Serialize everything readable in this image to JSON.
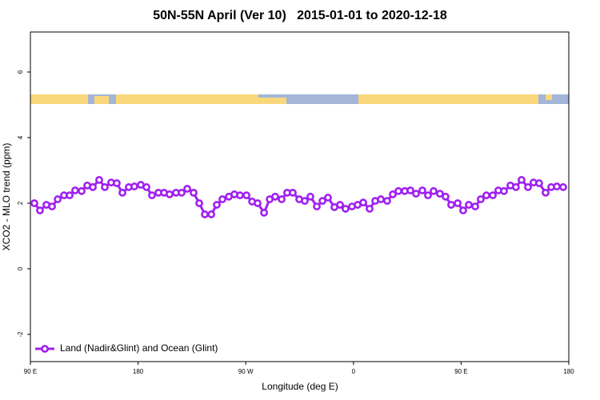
{
  "chart_data": {
    "type": "line",
    "title": "50N-55N April (Ver 10)   2015-01-01 to 2020-12-18",
    "x_label": "Longitude (deg E)",
    "y_label": "XCO2 - MLO trend (ppm)",
    "xlim": [
      90,
      540
    ],
    "ylim": [
      -2.83,
      7.22
    ],
    "xticks": [
      {
        "value": 90,
        "label": "90 E"
      },
      180,
      {
        "value": 270,
        "label": "90 W"
      },
      {
        "value": 360,
        "label": "0"
      },
      {
        "value": 450,
        "label": "90 E"
      },
      {
        "value": 540,
        "label": "180"
      }
    ],
    "yticks": [
      -2,
      0,
      2,
      4,
      6
    ],
    "legend": "bottom-left",
    "x": [
      93.3,
      98.0,
      103.4,
      108.1,
      112.8,
      118.1,
      122.8,
      127.4,
      132.8,
      137.5,
      142.2,
      147.5,
      152.2,
      157.5,
      162.2,
      166.9,
      172.2,
      176.9,
      182.3,
      187.0,
      191.6,
      197.0,
      201.7,
      206.3,
      211.7,
      216.4,
      221.1,
      226.4,
      231.1,
      235.8,
      241.2,
      245.8,
      250.5,
      255.9,
      260.5,
      265.2,
      270.6,
      275.3,
      279.9,
      285.3,
      290.0,
      294.6,
      300.0,
      304.6,
      309.3,
      314.7,
      319.3,
      324.0,
      329.4,
      334.1,
      338.7,
      344.1,
      348.8,
      353.4,
      358.8,
      363.5,
      368.2,
      373.5,
      378.2,
      382.9,
      388.2,
      392.9,
      397.6,
      402.9,
      407.6,
      412.3,
      417.6,
      422.3,
      427.0,
      432.3,
      437.0,
      441.7,
      447.1,
      451.7,
      456.4,
      461.8,
      466.4,
      471.1,
      476.5,
      481.1,
      485.8,
      491.2,
      495.8,
      500.5,
      505.9,
      510.5,
      515.2,
      520.6,
      525.3,
      530.0,
      535.3
    ],
    "series": [
      {
        "name": "Land (Nadir&Glint) and Ocean (Glint)",
        "color": "#a020f0",
        "values": [
          2.0,
          1.78,
          1.95,
          1.9,
          2.12,
          2.24,
          2.24,
          2.39,
          2.37,
          2.54,
          2.49,
          2.71,
          2.49,
          2.63,
          2.61,
          2.32,
          2.49,
          2.51,
          2.56,
          2.49,
          2.24,
          2.32,
          2.32,
          2.27,
          2.32,
          2.32,
          2.44,
          2.32,
          2.0,
          1.66,
          1.66,
          1.95,
          2.12,
          2.2,
          2.27,
          2.24,
          2.24,
          2.05,
          2.0,
          1.71,
          2.12,
          2.2,
          2.12,
          2.32,
          2.32,
          2.12,
          2.07,
          2.2,
          1.9,
          2.07,
          2.17,
          1.88,
          1.95,
          1.83,
          1.9,
          1.95,
          2.02,
          1.83,
          2.07,
          2.12,
          2.07,
          2.27,
          2.37,
          2.37,
          2.39,
          2.29,
          2.39,
          2.24,
          2.37,
          2.29,
          2.2,
          1.95,
          2.0,
          1.78,
          1.95,
          1.9,
          2.12,
          2.24,
          2.24,
          2.39,
          2.37,
          2.54,
          2.49,
          2.71,
          2.49,
          2.63,
          2.61,
          2.32,
          2.49,
          2.51,
          2.49
        ]
      }
    ]
  }
}
